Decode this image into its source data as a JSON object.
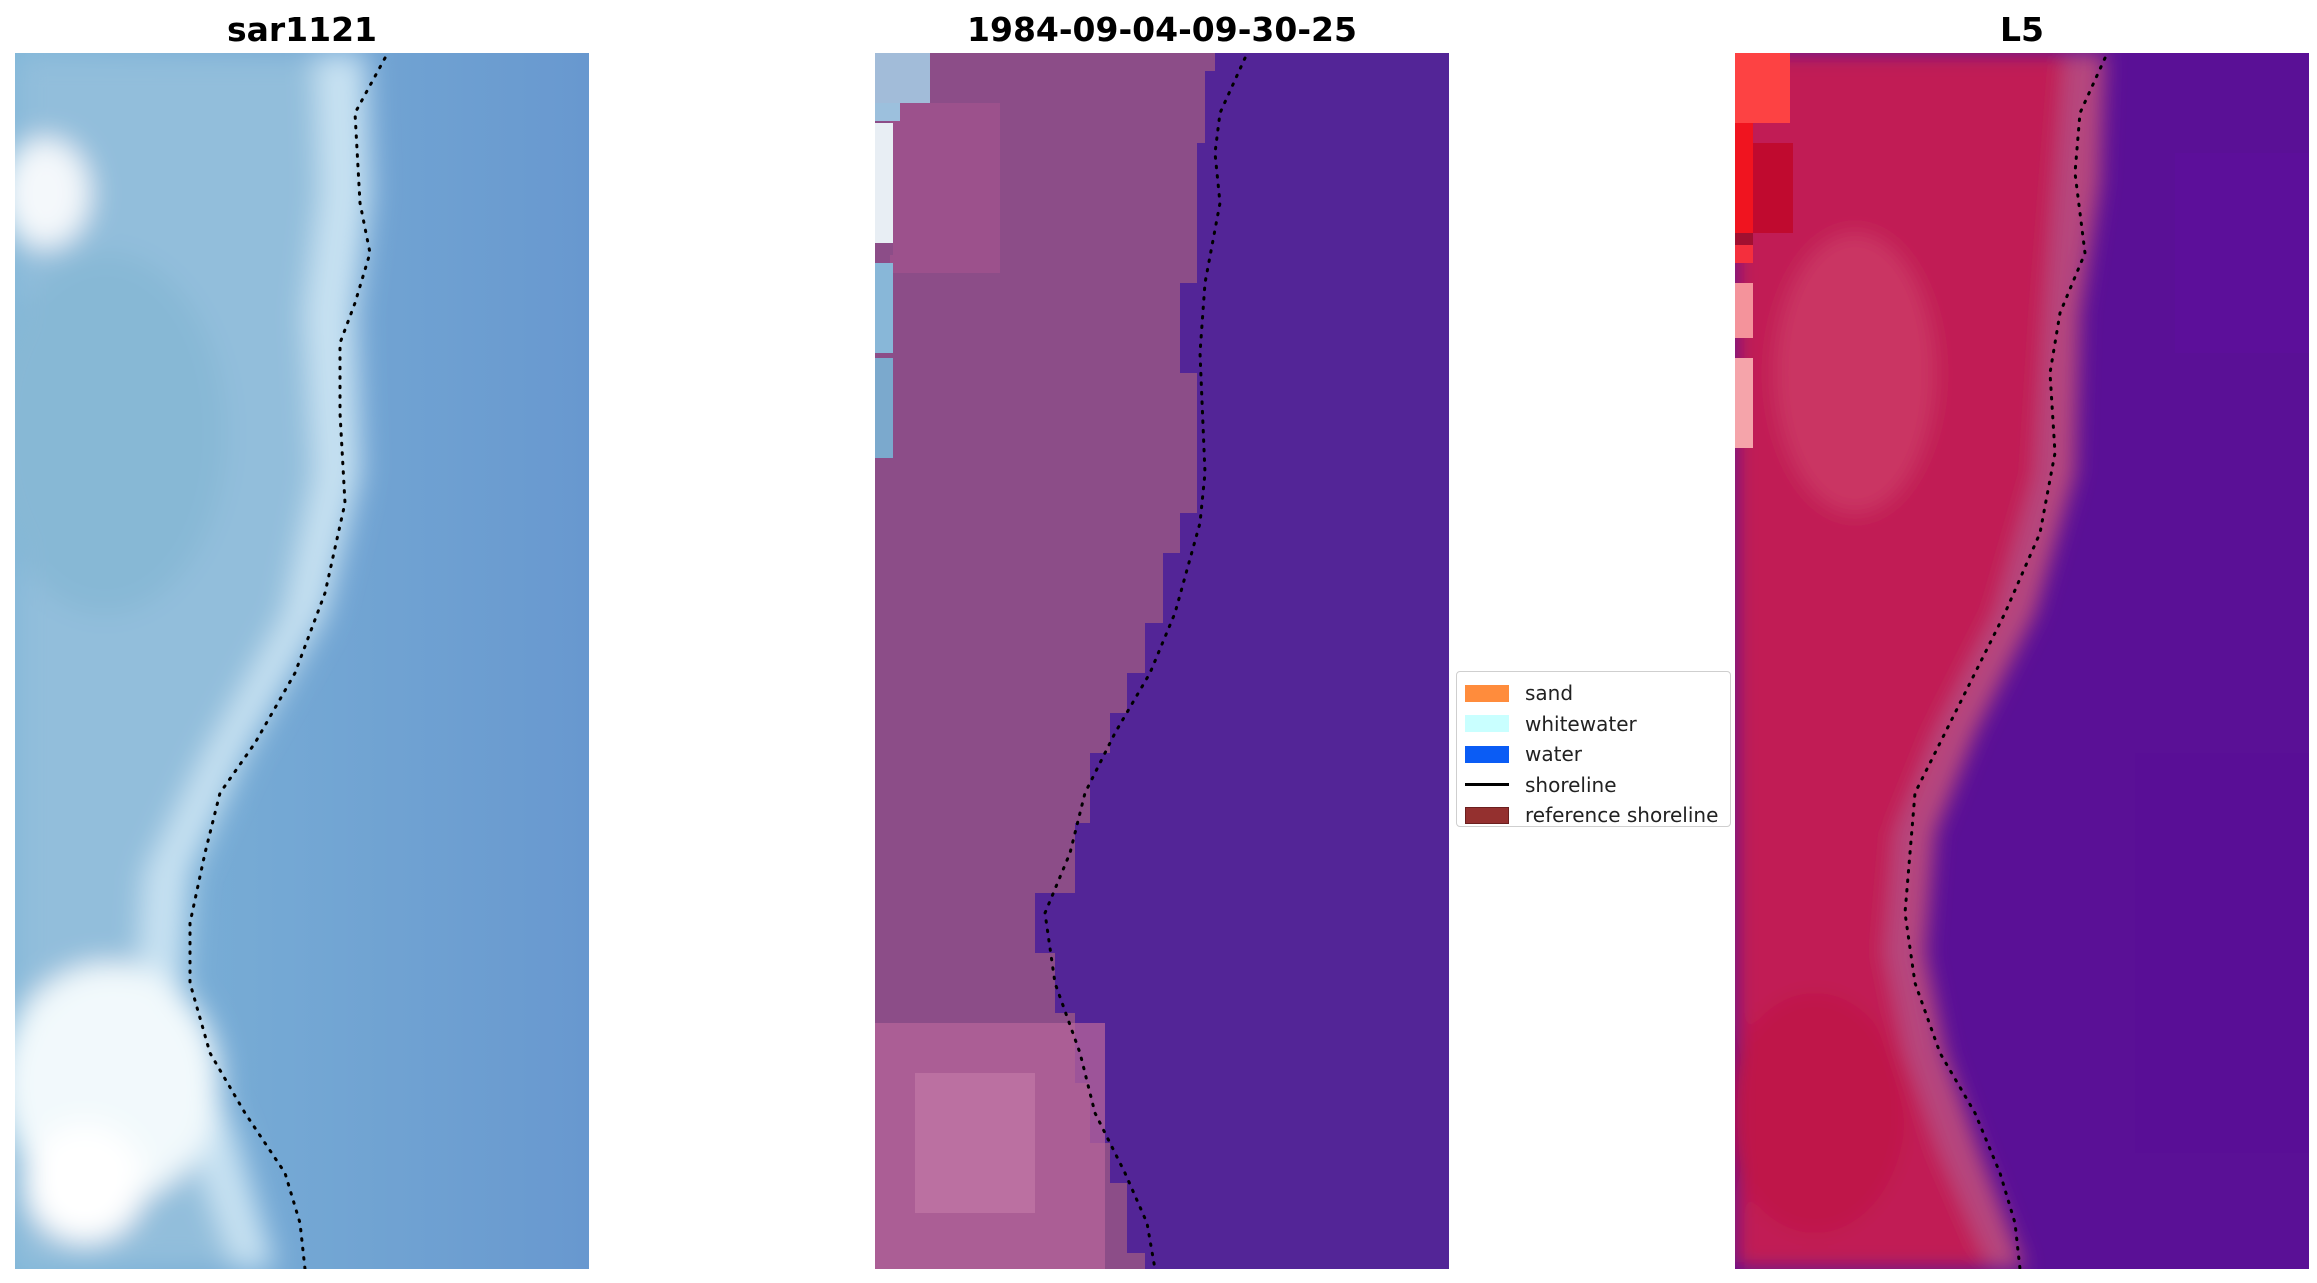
{
  "panels": [
    {
      "title": "sar1121",
      "palette": "rgb"
    },
    {
      "title": "1984-09-04-09-30-25",
      "palette": "classified"
    },
    {
      "title": "L5",
      "palette": "falsecolor"
    }
  ],
  "legend": {
    "items": [
      {
        "label": "sand",
        "kind": "swatch",
        "color": "#ff8c3c"
      },
      {
        "label": "whitewater",
        "kind": "swatch",
        "color": "#c9ffff"
      },
      {
        "label": "water",
        "kind": "swatch",
        "color": "#0a5cf5"
      },
      {
        "label": "shoreline",
        "kind": "line",
        "color": "#000000"
      },
      {
        "label": "reference shoreline",
        "kind": "swatch",
        "color": "#94302f"
      }
    ]
  }
}
